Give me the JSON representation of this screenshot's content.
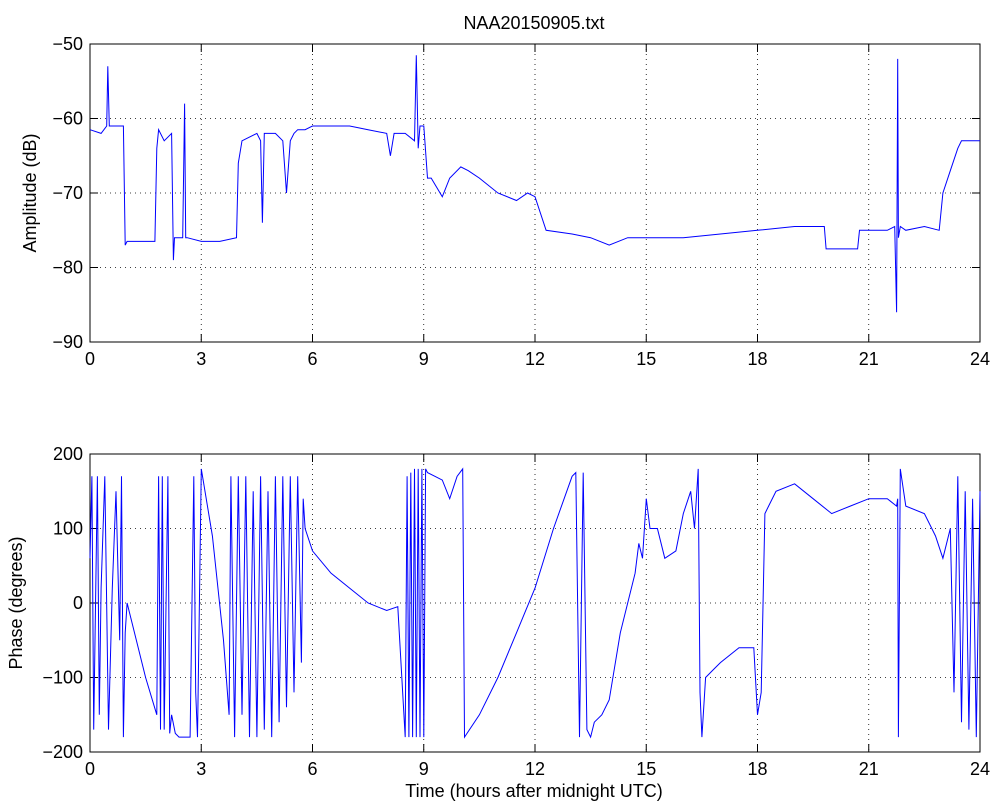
{
  "figure": {
    "title": "NAA20150905.txt"
  },
  "chart_data": [
    {
      "type": "line",
      "title": "NAA20150905.txt",
      "xlabel": "",
      "ylabel": "Amplitude (dB)",
      "xlim": [
        0,
        24
      ],
      "ylim": [
        -90,
        -50
      ],
      "xticks": [
        0,
        3,
        6,
        9,
        12,
        15,
        18,
        21,
        24
      ],
      "yticks": [
        -90,
        -80,
        -70,
        -60,
        -50
      ],
      "grid": true,
      "color": "#0000ff",
      "series": [
        {
          "x": [
            0,
            0.3,
            0.45,
            0.48,
            0.52,
            0.9,
            0.95,
            1.0,
            1.5,
            1.75,
            1.8,
            1.85,
            2.0,
            2.2,
            2.25,
            2.28,
            2.3,
            2.4,
            2.5,
            2.55,
            2.58,
            2.62,
            3.0,
            3.5,
            3.95,
            4.0,
            4.1,
            4.5,
            4.6,
            4.65,
            4.7,
            4.8,
            5.0,
            5.2,
            5.3,
            5.4,
            5.5,
            5.6,
            5.8,
            6.0,
            6.5,
            7.0,
            7.5,
            8.0,
            8.1,
            8.2,
            8.5,
            8.75,
            8.8,
            8.85,
            8.9,
            9.0,
            9.1,
            9.2,
            9.5,
            9.7,
            10.0,
            10.2,
            10.5,
            11.0,
            11.5,
            11.8,
            12.0,
            12.3,
            13.0,
            13.5,
            14.0,
            14.5,
            15.0,
            16.0,
            17.0,
            18.0,
            19.0,
            19.8,
            19.85,
            20.0,
            20.5,
            20.7,
            20.75,
            21.0,
            21.5,
            21.7,
            21.75,
            21.78,
            21.8,
            21.85,
            22.0,
            22.5,
            22.9,
            23.0,
            23.2,
            23.4,
            23.5,
            23.8,
            24.0
          ],
          "values": [
            -61.5,
            -62,
            -61,
            -53,
            -61,
            -61,
            -77,
            -76.5,
            -76.5,
            -76.5,
            -64,
            -61.5,
            -63,
            -62,
            -79,
            -76,
            -76,
            -76,
            -76,
            -58,
            -76,
            -76,
            -76.5,
            -76.5,
            -76,
            -66,
            -63,
            -62,
            -63,
            -74,
            -62,
            -62,
            -62,
            -63,
            -70,
            -63,
            -62,
            -61.5,
            -61.5,
            -61,
            -61,
            -61,
            -61.5,
            -62,
            -65,
            -62,
            -62,
            -63,
            -51.5,
            -64,
            -61,
            -61,
            -68,
            -68,
            -70.5,
            -68,
            -66.5,
            -67,
            -68,
            -70,
            -71,
            -70,
            -70.5,
            -75,
            -75.5,
            -76,
            -77,
            -76,
            -76,
            -76,
            -75.5,
            -75,
            -74.5,
            -74.5,
            -77.5,
            -77.5,
            -77.5,
            -77.5,
            -75,
            -75,
            -75,
            -74.5,
            -86,
            -52,
            -76,
            -74.5,
            -75,
            -74.5,
            -75,
            -70,
            -67,
            -64,
            -63,
            -63,
            -63
          ]
        }
      ]
    },
    {
      "type": "line",
      "title": "",
      "xlabel": "Time (hours after midnight UTC)",
      "ylabel": "Phase (degrees)",
      "xlim": [
        0,
        24
      ],
      "ylim": [
        -200,
        200
      ],
      "xticks": [
        0,
        3,
        6,
        9,
        12,
        15,
        18,
        21,
        24
      ],
      "yticks": [
        -200,
        -100,
        0,
        100,
        200
      ],
      "grid": true,
      "color": "#0000ff",
      "series": [
        {
          "x": [
            0,
            0.05,
            0.1,
            0.2,
            0.25,
            0.3,
            0.4,
            0.5,
            0.6,
            0.7,
            0.8,
            0.85,
            0.9,
            0.95,
            1.0,
            1.1,
            1.5,
            1.8,
            1.85,
            1.9,
            1.95,
            2.0,
            2.1,
            2.15,
            2.2,
            2.3,
            2.4,
            2.7,
            2.8,
            2.85,
            2.9,
            3.0,
            3.3,
            3.6,
            3.75,
            3.8,
            3.9,
            4.0,
            4.1,
            4.2,
            4.3,
            4.4,
            4.5,
            4.6,
            4.7,
            4.8,
            4.9,
            5.0,
            5.1,
            5.2,
            5.3,
            5.4,
            5.5,
            5.6,
            5.7,
            5.75,
            5.8,
            6.0,
            6.5,
            7.0,
            7.5,
            8.0,
            8.3,
            8.5,
            8.55,
            8.6,
            8.65,
            8.7,
            8.75,
            8.8,
            8.85,
            8.9,
            8.95,
            9.0,
            9.05,
            9.1,
            9.3,
            9.5,
            9.7,
            9.9,
            10.05,
            10.1,
            10.5,
            11.0,
            11.5,
            12.0,
            12.5,
            13.0,
            13.1,
            13.2,
            13.3,
            13.4,
            13.5,
            13.6,
            13.8,
            14.0,
            14.3,
            14.5,
            14.7,
            14.8,
            14.9,
            15.0,
            15.1,
            15.3,
            15.5,
            15.8,
            16.0,
            16.2,
            16.3,
            16.4,
            16.45,
            16.5,
            16.6,
            16.8,
            17.0,
            17.5,
            17.9,
            18.0,
            18.1,
            18.2,
            18.3,
            18.5,
            19.0,
            19.5,
            20.0,
            20.5,
            21.0,
            21.5,
            21.75,
            21.78,
            21.8,
            21.85,
            22.0,
            22.5,
            22.7,
            22.8,
            23.0,
            23.2,
            23.3,
            23.4,
            23.5,
            23.6,
            23.7,
            23.8,
            23.9,
            24.0
          ],
          "values": [
            60,
            170,
            -170,
            170,
            -150,
            20,
            170,
            -170,
            20,
            150,
            -50,
            170,
            -180,
            -40,
            0,
            -20,
            -100,
            -150,
            170,
            -170,
            170,
            -170,
            170,
            -175,
            -150,
            -175,
            -180,
            -180,
            170,
            -120,
            -180,
            180,
            90,
            -50,
            -150,
            170,
            -180,
            170,
            -150,
            170,
            -180,
            150,
            -180,
            170,
            -170,
            150,
            -180,
            170,
            -160,
            170,
            -140,
            170,
            -120,
            170,
            -80,
            140,
            100,
            70,
            40,
            20,
            0,
            -10,
            -5,
            -180,
            170,
            -180,
            175,
            -180,
            180,
            -180,
            180,
            -180,
            180,
            -180,
            180,
            175,
            170,
            165,
            140,
            170,
            180,
            -180,
            -150,
            -100,
            -40,
            20,
            100,
            170,
            175,
            -180,
            175,
            -170,
            -180,
            -160,
            -150,
            -130,
            -40,
            0,
            40,
            80,
            60,
            140,
            100,
            100,
            60,
            70,
            120,
            150,
            100,
            180,
            -120,
            -180,
            -100,
            -90,
            -80,
            -60,
            -60,
            -150,
            -120,
            120,
            130,
            150,
            160,
            140,
            120,
            130,
            140,
            140,
            130,
            140,
            -180,
            180,
            130,
            120,
            100,
            90,
            60,
            100,
            -120,
            170,
            -160,
            150,
            -170,
            140,
            -180,
            150
          ]
        }
      ]
    }
  ]
}
